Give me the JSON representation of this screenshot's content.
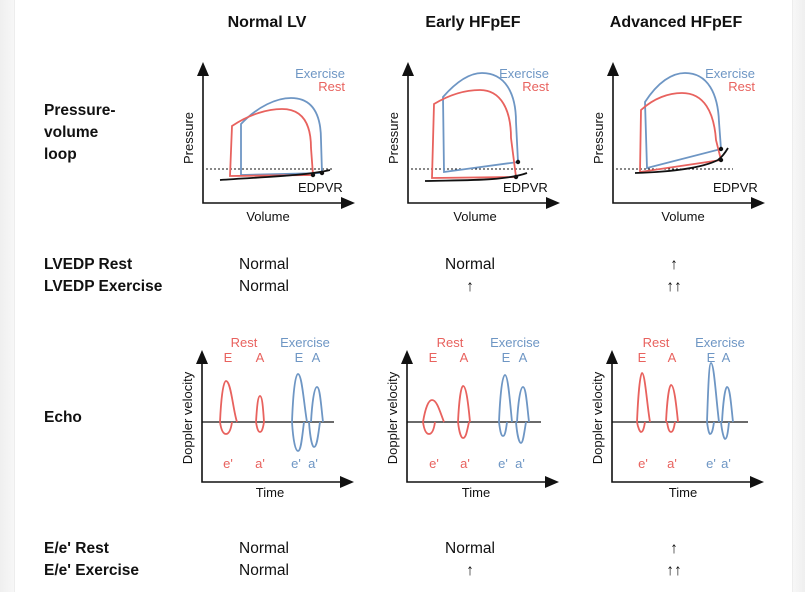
{
  "columns": [
    "Normal LV",
    "Early HFpEF",
    "Advanced HFpEF"
  ],
  "rows": {
    "pv_loop": "Pressure-\nvolume\nloop",
    "lvedp_rest": "LVEDP Rest",
    "lvedp_exercise": "LVEDP Exercise",
    "echo": "Echo",
    "ee_rest": "E/e' Rest",
    "ee_exercise": "E/e' Exercise"
  },
  "values": {
    "lvedp_rest": [
      "Normal",
      "Normal",
      "↑"
    ],
    "lvedp_exercise": [
      "Normal",
      "↑",
      "↑↑"
    ],
    "ee_rest": [
      "Normal",
      "Normal",
      "↑"
    ],
    "ee_exercise": [
      "Normal",
      "↑",
      "↑↑"
    ]
  },
  "pv_panel": {
    "x_label": "Volume",
    "y_label": "Pressure",
    "legend": {
      "exercise": "Exercise",
      "rest": "Rest"
    },
    "curve_label": "EDPVR"
  },
  "echo_panel": {
    "x_label": "Time",
    "y_label": "Doppler velocity",
    "rest_label": "Rest",
    "exercise_label": "Exercise",
    "wave_E": "E",
    "wave_A": "A",
    "wave_e_prime": "e'",
    "wave_a_prime": "a'"
  },
  "colors": {
    "exercise": "#6e96c4",
    "rest": "#e8625e",
    "ink": "#111111"
  }
}
